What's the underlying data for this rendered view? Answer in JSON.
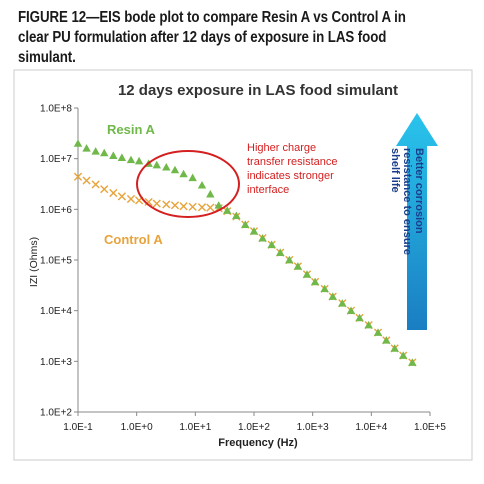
{
  "figure_caption": "FIGURE 12—EIS bode plot to compare Resin A vs Control A in clear PU formulation after 12 days of exposure in LAS food simulant.",
  "chart_data": {
    "type": "scatter",
    "title": "12 days exposure in LAS food simulant",
    "xlabel": "Frequency (Hz)",
    "ylabel": "IZI (Ohms)",
    "x_scale": "log",
    "y_scale": "log",
    "xlim": [
      0.1,
      100000
    ],
    "ylim": [
      100,
      100000000
    ],
    "x_ticks": [
      "1.0E-1",
      "1.0E+0",
      "1.0E+1",
      "1.0E+2",
      "1.0E+3",
      "1.0E+4",
      "1.0E+5"
    ],
    "y_ticks": [
      "1.0E+2",
      "1.0E+3",
      "1.0E+4",
      "1.0E+5",
      "1.0E+6",
      "1.0E+7",
      "1.0E+8"
    ],
    "grid": false,
    "legend": "none",
    "series": [
      {
        "name": "Resin A",
        "marker": "triangle",
        "color": "#70b84a",
        "x": [
          0.1,
          0.14,
          0.2,
          0.28,
          0.4,
          0.56,
          0.8,
          1.1,
          1.6,
          2.2,
          3.2,
          4.5,
          6.3,
          9,
          13,
          18,
          25,
          35,
          50,
          71,
          100,
          140,
          200,
          280,
          400,
          560,
          800,
          1100,
          1600,
          2200,
          3200,
          4500,
          6300,
          9000,
          13000,
          18000,
          25000,
          35000,
          50000
        ],
        "y": [
          20000000,
          16000000,
          14000000,
          13000000,
          11500000,
          10500000,
          9500000,
          9000000,
          8000000,
          7500000,
          6800000,
          6000000,
          5000000,
          4200000,
          3000000,
          2000000,
          1200000,
          950000,
          750000,
          500000,
          370000,
          270000,
          200000,
          140000,
          100000,
          75000,
          52000,
          37000,
          27000,
          19000,
          14000,
          10000,
          7200,
          5200,
          3700,
          2600,
          1800,
          1300,
          950
        ]
      },
      {
        "name": "Control A",
        "marker": "x",
        "color": "#e8a33a",
        "x": [
          0.1,
          0.14,
          0.2,
          0.28,
          0.4,
          0.56,
          0.8,
          1.1,
          1.6,
          2.2,
          3.2,
          4.5,
          6.3,
          9,
          13,
          18,
          25,
          35,
          50,
          71,
          100,
          140,
          200,
          280,
          400,
          560,
          800,
          1100,
          1600,
          2200,
          3200,
          4500,
          6300,
          9000,
          13000,
          18000,
          25000,
          35000,
          50000
        ],
        "y": [
          4400000,
          3700000,
          3100000,
          2500000,
          2100000,
          1800000,
          1600000,
          1500000,
          1400000,
          1300000,
          1250000,
          1200000,
          1150000,
          1120000,
          1100000,
          1080000,
          1050000,
          920000,
          720000,
          500000,
          370000,
          270000,
          200000,
          140000,
          100000,
          75000,
          52000,
          37000,
          27000,
          19000,
          14000,
          10000,
          7200,
          5200,
          3700,
          2600,
          1800,
          1300,
          950
        ]
      }
    ],
    "series_labels": [
      "Resin A",
      "Control A"
    ],
    "annotations": [
      "Higher charge",
      "transfer resistance",
      "indicates stronger",
      "interface"
    ],
    "arrow_label": [
      "Better corrosion",
      "resistance to ensure",
      "shelf life"
    ],
    "colors": {
      "resin": "#70b84a",
      "control": "#e8a33a",
      "annotation": "#d42020",
      "arrow_top": "#29c4ec",
      "arrow_bottom": "#1a7ec2"
    }
  }
}
